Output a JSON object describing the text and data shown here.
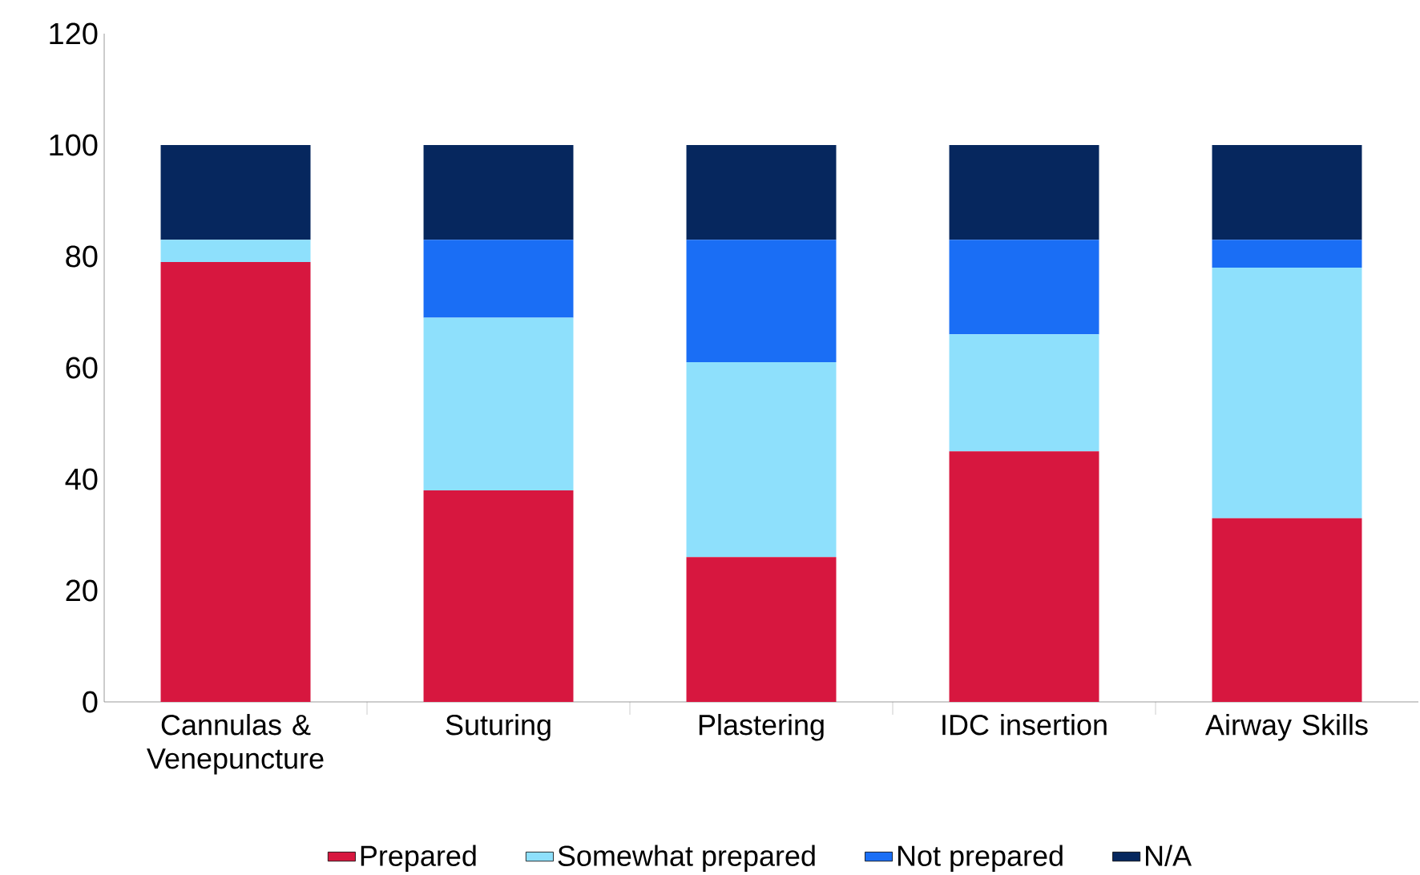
{
  "chart_data": {
    "type": "bar",
    "stacked": true,
    "categories": [
      "Cannulas & Venepuncture",
      "Suturing",
      "Plastering",
      "IDC insertion",
      "Airway Skills"
    ],
    "series": [
      {
        "name": "Prepared",
        "color": "#d7173f",
        "values": [
          79,
          38,
          26,
          45,
          33
        ]
      },
      {
        "name": "Somewhat prepared",
        "color": "#8ee0fc",
        "values": [
          4,
          31,
          35,
          21,
          45
        ]
      },
      {
        "name": "Not prepared",
        "color": "#1a6ef5",
        "values": [
          0,
          14,
          22,
          17,
          5
        ]
      },
      {
        "name": "N/A",
        "color": "#06275e",
        "values": [
          17,
          17,
          17,
          17,
          17
        ]
      }
    ],
    "ylim": [
      0,
      120
    ],
    "yticks": [
      0,
      20,
      40,
      60,
      80,
      100,
      120
    ],
    "grid": false,
    "legend": "bottom"
  }
}
